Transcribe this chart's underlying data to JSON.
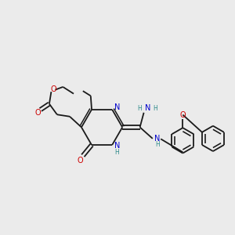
{
  "bg_color": "#ebebeb",
  "bond_color": "#1a1a1a",
  "N_color": "#0000cc",
  "O_color": "#cc0000",
  "H_color": "#2e8b8b",
  "font_size": 7.0,
  "line_width": 1.3,
  "figsize": [
    3.0,
    3.0
  ],
  "dpi": 100,
  "xlim": [
    0,
    12
  ],
  "ylim": [
    0,
    12
  ]
}
